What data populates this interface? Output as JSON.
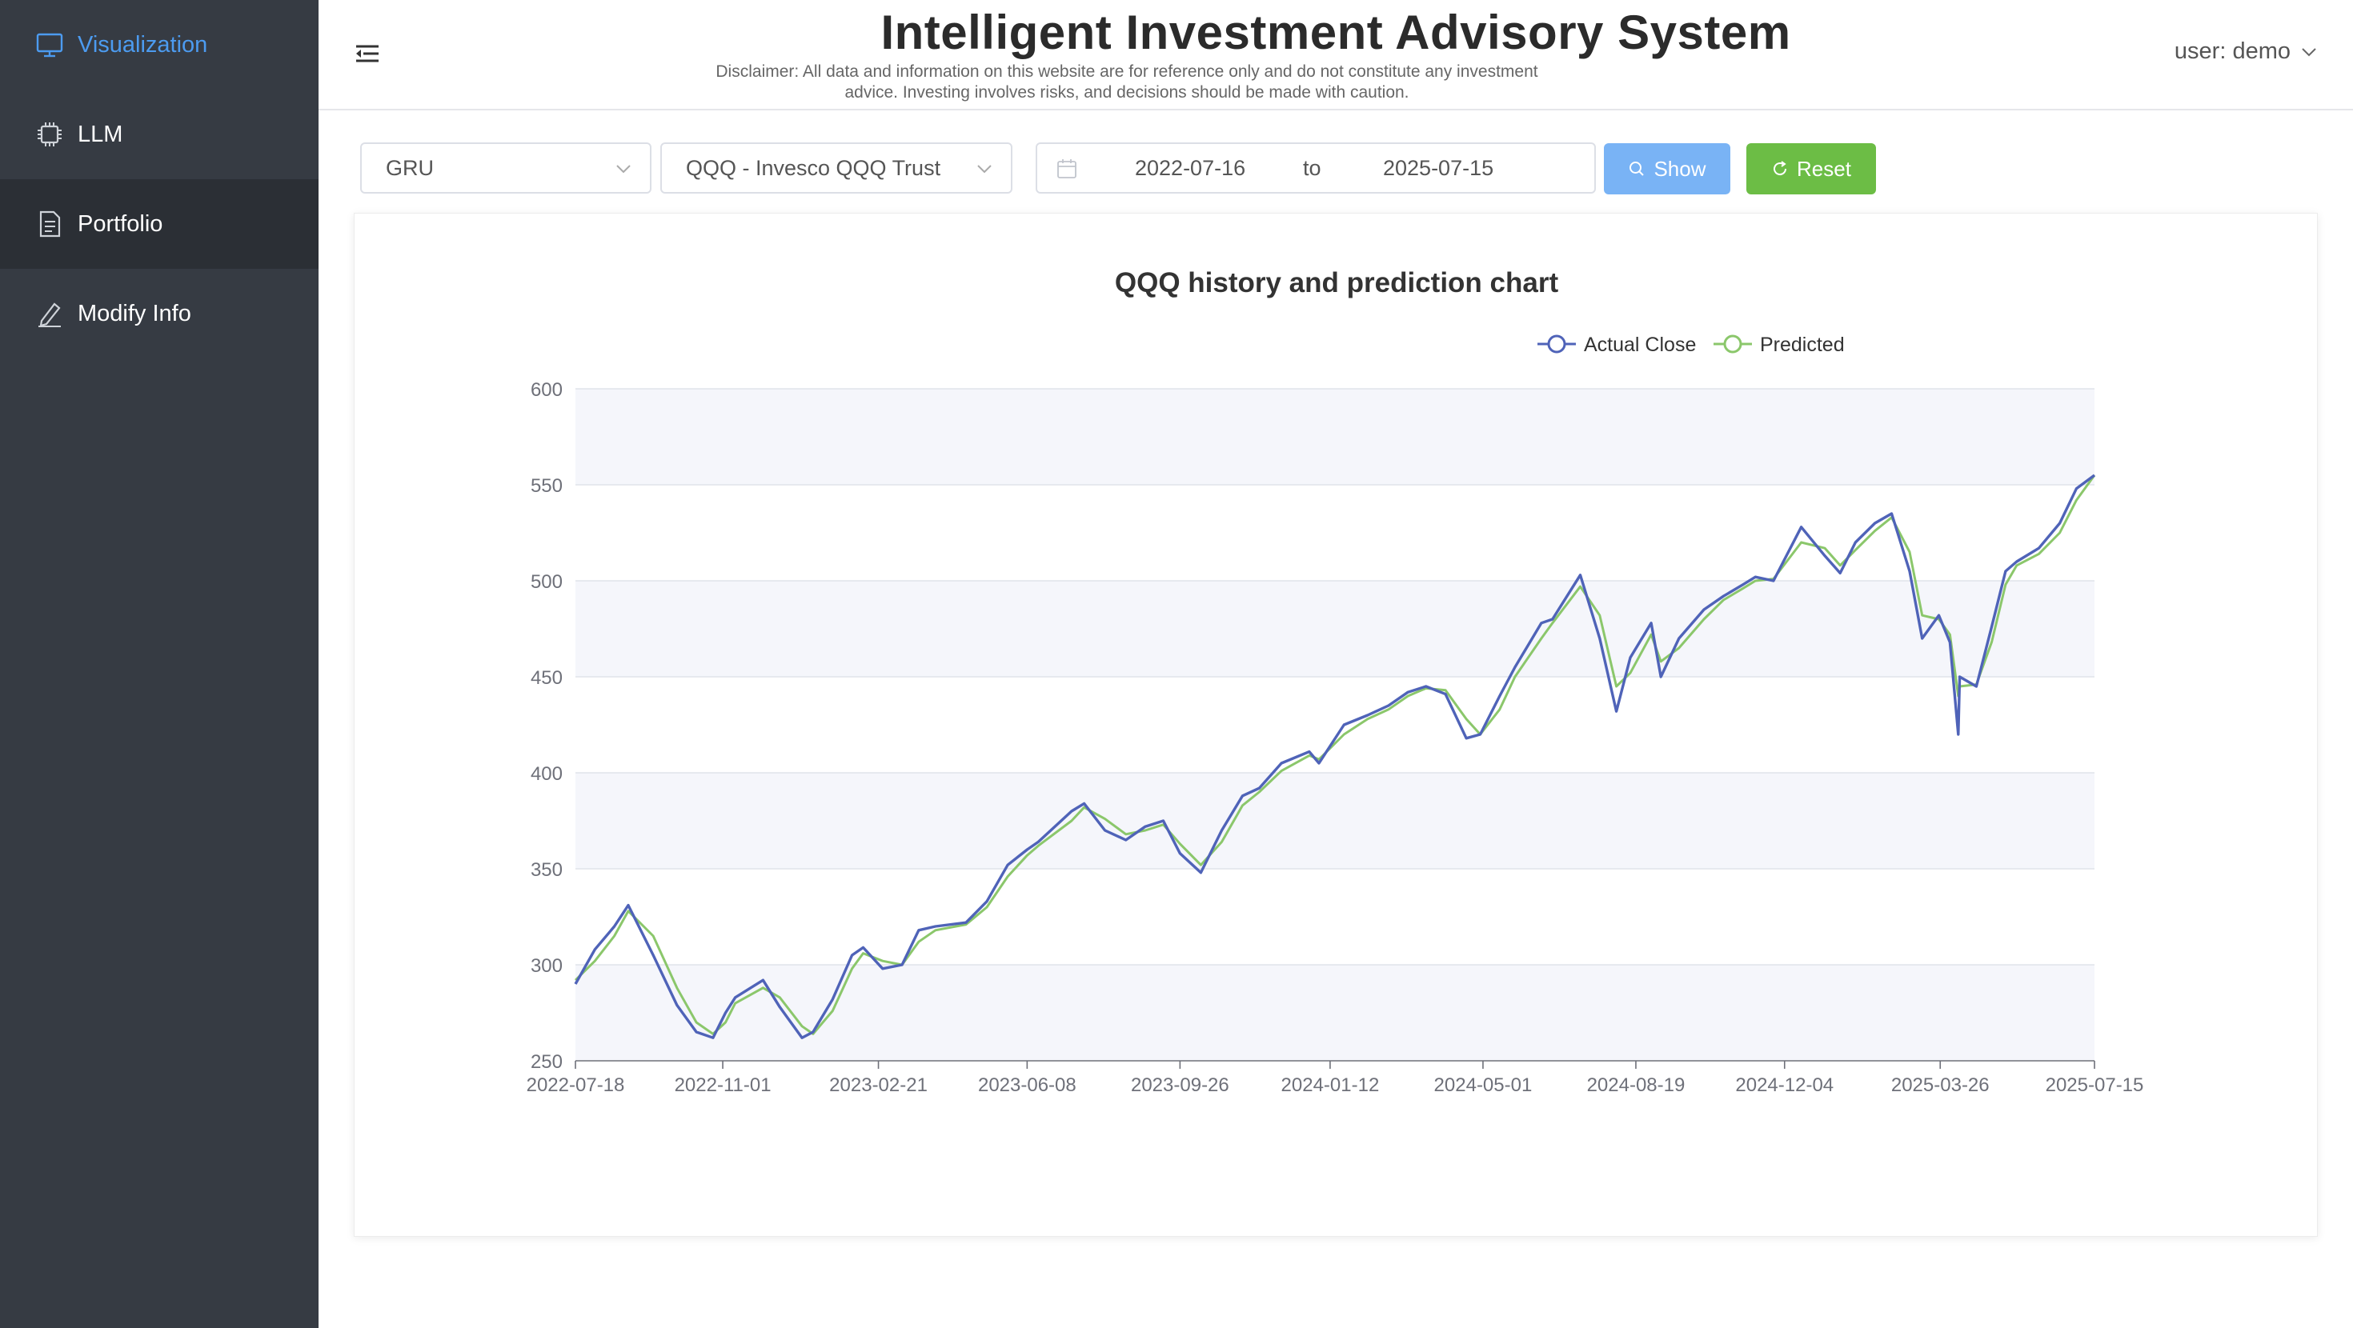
{
  "sidebar": {
    "items": [
      {
        "label": "Visualization",
        "icon": "monitor-icon"
      },
      {
        "label": "LLM",
        "icon": "chip-icon"
      },
      {
        "label": "Portfolio",
        "icon": "document-icon"
      },
      {
        "label": "Modify Info",
        "icon": "edit-icon"
      }
    ]
  },
  "header": {
    "title": "Intelligent Investment Advisory System",
    "disclaimer_line1": "Disclaimer: All data and information on this website are for reference only and do not constitute any investment",
    "disclaimer_line2": "advice. Investing involves risks, and decisions should be made with caution.",
    "user_label": "user: demo"
  },
  "toolbar": {
    "model_select": "GRU",
    "ticker_select": "QQQ - Invesco QQQ Trust",
    "start_date": "2022-07-16",
    "range_separator": "to",
    "end_date": "2025-07-15",
    "show_label": "Show",
    "reset_label": "Reset"
  },
  "colors": {
    "sidebar_bg": "#363b43",
    "accent": "#4c9bf0",
    "show_btn": "#79b3f5",
    "reset_btn": "#6cbd45",
    "actual_line": "#4f63b8",
    "predicted_line": "#8bc76b"
  },
  "chart_data": {
    "type": "line",
    "title": "QQQ history and prediction chart",
    "legend": [
      "Actual Close",
      "Predicted"
    ],
    "legend_position": "top-center",
    "ylim": [
      250,
      600
    ],
    "yticks": [
      250,
      300,
      350,
      400,
      450,
      500,
      550,
      600
    ],
    "xticks": [
      "2022-07-18",
      "2022-11-01",
      "2023-02-21",
      "2023-06-08",
      "2023-09-26",
      "2024-01-12",
      "2024-05-01",
      "2024-08-19",
      "2024-12-04",
      "2025-03-26",
      "2025-07-15"
    ],
    "grid": "horizontal bands",
    "series": [
      {
        "name": "Actual Close",
        "x": [
          "2022-07-18",
          "2022-08-01",
          "2022-08-15",
          "2022-08-25",
          "2022-09-12",
          "2022-09-29",
          "2022-10-13",
          "2022-10-25",
          "2022-11-03",
          "2022-11-10",
          "2022-11-30",
          "2022-12-12",
          "2022-12-28",
          "2023-01-05",
          "2023-01-19",
          "2023-02-02",
          "2023-02-10",
          "2023-02-24",
          "2023-03-10",
          "2023-03-22",
          "2023-04-03",
          "2023-04-25",
          "2023-05-10",
          "2023-05-25",
          "2023-06-08",
          "2023-06-16",
          "2023-07-10",
          "2023-07-19",
          "2023-08-03",
          "2023-08-18",
          "2023-09-01",
          "2023-09-14",
          "2023-09-26",
          "2023-10-11",
          "2023-10-26",
          "2023-11-10",
          "2023-11-22",
          "2023-12-08",
          "2023-12-28",
          "2024-01-04",
          "2024-01-22",
          "2024-02-08",
          "2024-02-23",
          "2024-03-08",
          "2024-03-21",
          "2024-04-04",
          "2024-04-19",
          "2024-04-29",
          "2024-05-13",
          "2024-05-24",
          "2024-06-12",
          "2024-06-20",
          "2024-07-10",
          "2024-07-24",
          "2024-08-05",
          "2024-08-15",
          "2024-08-30",
          "2024-09-06",
          "2024-09-19",
          "2024-10-07",
          "2024-10-21",
          "2024-11-04",
          "2024-11-13",
          "2024-11-26",
          "2024-12-16",
          "2025-01-02",
          "2025-01-13",
          "2025-01-24",
          "2025-02-07",
          "2025-02-19",
          "2025-03-04",
          "2025-03-13",
          "2025-03-25",
          "2025-04-02",
          "2025-04-08",
          "2025-04-09",
          "2025-04-21",
          "2025-05-02",
          "2025-05-12",
          "2025-05-20",
          "2025-06-05",
          "2025-06-20",
          "2025-07-02",
          "2025-07-15"
        ],
        "values": [
          290,
          308,
          320,
          331,
          305,
          279,
          265,
          262,
          275,
          283,
          292,
          278,
          262,
          265,
          282,
          305,
          309,
          298,
          300,
          318,
          320,
          322,
          333,
          352,
          360,
          364,
          380,
          384,
          370,
          365,
          372,
          375,
          358,
          348,
          370,
          388,
          392,
          405,
          411,
          405,
          425,
          430,
          435,
          442,
          445,
          441,
          418,
          420,
          440,
          455,
          478,
          480,
          503,
          470,
          432,
          460,
          478,
          450,
          470,
          485,
          492,
          498,
          502,
          500,
          528,
          513,
          504,
          520,
          530,
          535,
          505,
          470,
          482,
          468,
          420,
          450,
          445,
          476,
          505,
          510,
          517,
          530,
          548,
          555
        ]
      },
      {
        "name": "Predicted",
        "x": [
          "2022-07-18",
          "2022-08-01",
          "2022-08-15",
          "2022-08-25",
          "2022-09-12",
          "2022-09-29",
          "2022-10-13",
          "2022-10-25",
          "2022-11-03",
          "2022-11-10",
          "2022-11-30",
          "2022-12-12",
          "2022-12-28",
          "2023-01-05",
          "2023-01-19",
          "2023-02-02",
          "2023-02-10",
          "2023-02-24",
          "2023-03-10",
          "2023-03-22",
          "2023-04-03",
          "2023-04-25",
          "2023-05-10",
          "2023-05-25",
          "2023-06-08",
          "2023-06-16",
          "2023-07-10",
          "2023-07-19",
          "2023-08-03",
          "2023-08-18",
          "2023-09-01",
          "2023-09-14",
          "2023-09-26",
          "2023-10-11",
          "2023-10-26",
          "2023-11-10",
          "2023-11-22",
          "2023-12-08",
          "2023-12-28",
          "2024-01-04",
          "2024-01-22",
          "2024-02-08",
          "2024-02-23",
          "2024-03-08",
          "2024-03-21",
          "2024-04-04",
          "2024-04-19",
          "2024-04-29",
          "2024-05-13",
          "2024-05-24",
          "2024-06-12",
          "2024-06-20",
          "2024-07-10",
          "2024-07-24",
          "2024-08-05",
          "2024-08-15",
          "2024-08-30",
          "2024-09-06",
          "2024-09-19",
          "2024-10-07",
          "2024-10-21",
          "2024-11-04",
          "2024-11-13",
          "2024-11-26",
          "2024-12-16",
          "2025-01-02",
          "2025-01-13",
          "2025-01-24",
          "2025-02-07",
          "2025-02-19",
          "2025-03-04",
          "2025-03-13",
          "2025-03-25",
          "2025-04-02",
          "2025-04-08",
          "2025-04-09",
          "2025-04-21",
          "2025-05-02",
          "2025-05-12",
          "2025-05-20",
          "2025-06-05",
          "2025-06-20",
          "2025-07-02",
          "2025-07-15"
        ],
        "values": [
          292,
          302,
          315,
          328,
          315,
          288,
          270,
          264,
          270,
          280,
          288,
          283,
          268,
          264,
          276,
          298,
          306,
          302,
          300,
          312,
          318,
          321,
          330,
          346,
          357,
          362,
          375,
          382,
          376,
          368,
          370,
          373,
          363,
          352,
          364,
          383,
          390,
          401,
          409,
          407,
          420,
          428,
          433,
          440,
          444,
          443,
          428,
          420,
          433,
          450,
          470,
          478,
          497,
          482,
          445,
          452,
          472,
          458,
          465,
          480,
          490,
          496,
          500,
          501,
          520,
          517,
          508,
          516,
          526,
          533,
          515,
          482,
          480,
          472,
          440,
          445,
          446,
          468,
          498,
          508,
          514,
          525,
          542,
          555
        ]
      }
    ]
  }
}
